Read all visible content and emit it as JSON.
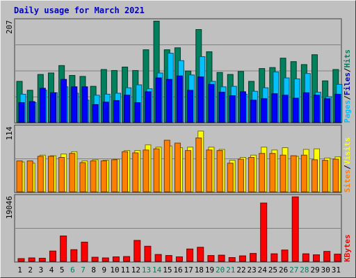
{
  "chart_data": {
    "type": "bar",
    "title": "Daily usage for March 2021",
    "categories": [
      "1",
      "2",
      "3",
      "4",
      "5",
      "6",
      "7",
      "8",
      "9",
      "10",
      "11",
      "12",
      "13",
      "14",
      "15",
      "16",
      "17",
      "18",
      "19",
      "20",
      "21",
      "22",
      "23",
      "24",
      "25",
      "26",
      "27",
      "28",
      "29",
      "30",
      "31"
    ],
    "weekend_days": [
      "6",
      "7",
      "13",
      "14",
      "20",
      "21",
      "27",
      "28"
    ],
    "colors": {
      "hits": "#00805c",
      "files": "#00c0ff",
      "pages": "#0000ff",
      "visits": "#ffff00",
      "sites": "#ff8000",
      "kbytes": "#ff0000",
      "weekday_label": "#000000",
      "weekend_label": "#00805c",
      "background": "#c0c0c0",
      "grid": "#808080"
    },
    "panels": [
      {
        "id": "hits-files-pages",
        "ymax_label": "207",
        "ylim": [
          0,
          207
        ],
        "legend": [
          {
            "text": "Pages",
            "color": "#00c0ff"
          },
          {
            "text": "/",
            "color": "#000000"
          },
          {
            "text": "Files",
            "color": "#0000c0"
          },
          {
            "text": "/",
            "color": "#000000"
          },
          {
            "text": "Hits",
            "color": "#00805c"
          }
        ],
        "series": [
          {
            "name": "Hits",
            "color": "#00805c",
            "values": [
              83,
              65,
              97,
              100,
              115,
              95,
              93,
              73,
              107,
              105,
              112,
              105,
              147,
              205,
              147,
              151,
              104,
              188,
              143,
              101,
              97,
              103,
              83,
              109,
              111,
              130,
              123,
              117,
              137,
              84,
              107
            ]
          },
          {
            "name": "Files",
            "color": "#00c0ff",
            "values": [
              57,
              40,
              65,
              60,
              72,
              59,
              45,
              55,
              57,
              59,
              70,
              76,
              68,
              100,
              140,
              125,
              96,
              133,
              83,
              72,
              73,
              57,
              63,
              70,
              102,
              90,
              88,
              99,
              61,
              52,
              77
            ]
          },
          {
            "name": "Pages",
            "color": "#0000ff",
            "values": [
              40,
              42,
              69,
              60,
              87,
              72,
              72,
              36,
              41,
              44,
              55,
              40,
              62,
              90,
              87,
              94,
              65,
              92,
              77,
              61,
              54,
              62,
              45,
              48,
              58,
              55,
              49,
              60,
              55,
              48,
              57
            ]
          }
        ]
      },
      {
        "id": "visits-sites",
        "ymax_label": "114",
        "ylim": [
          0,
          114
        ],
        "legend": [
          {
            "text": "Sites",
            "color": "#ff8000"
          },
          {
            "text": "/",
            "color": "#000000"
          },
          {
            "text": "Visits",
            "color": "#ffff00"
          }
        ],
        "series": [
          {
            "name": "Visits",
            "color": "#ffff00",
            "values": [
              52,
              50,
              64,
              63,
              66,
              70,
              54,
              56,
              55,
              57,
              72,
              72,
              82,
              78,
              80,
              77,
              78,
              106,
              78,
              74,
              55,
              60,
              64,
              78,
              73,
              77,
              62,
              74,
              75,
              59,
              61
            ]
          },
          {
            "name": "Sites",
            "color": "#ff8000",
            "values": [
              54,
              54,
              62,
              62,
              60,
              67,
              51,
              54,
              54,
              56,
              70,
              68,
              73,
              75,
              90,
              85,
              72,
              94,
              73,
              72,
              50,
              57,
              60,
              67,
              67,
              64,
              63,
              64,
              56,
              55,
              57
            ]
          }
        ]
      },
      {
        "id": "kbytes",
        "ymax_label": "19046",
        "ylim": [
          0,
          19046
        ],
        "legend": [
          {
            "text": "KBytes",
            "color": "#ff0000"
          }
        ],
        "series": [
          {
            "name": "KBytes",
            "color": "#ff0000",
            "values": [
              800,
              1000,
              900,
              3000,
              7400,
              3400,
              5600,
              1200,
              1000,
              1300,
              1400,
              6100,
              4400,
              2000,
              1700,
              1300,
              3600,
              4100,
              1700,
              1800,
              1100,
              1600,
              2300,
              17000,
              2200,
              3300,
              18800,
              2200,
              1900,
              2900,
              2100
            ]
          }
        ]
      }
    ]
  }
}
